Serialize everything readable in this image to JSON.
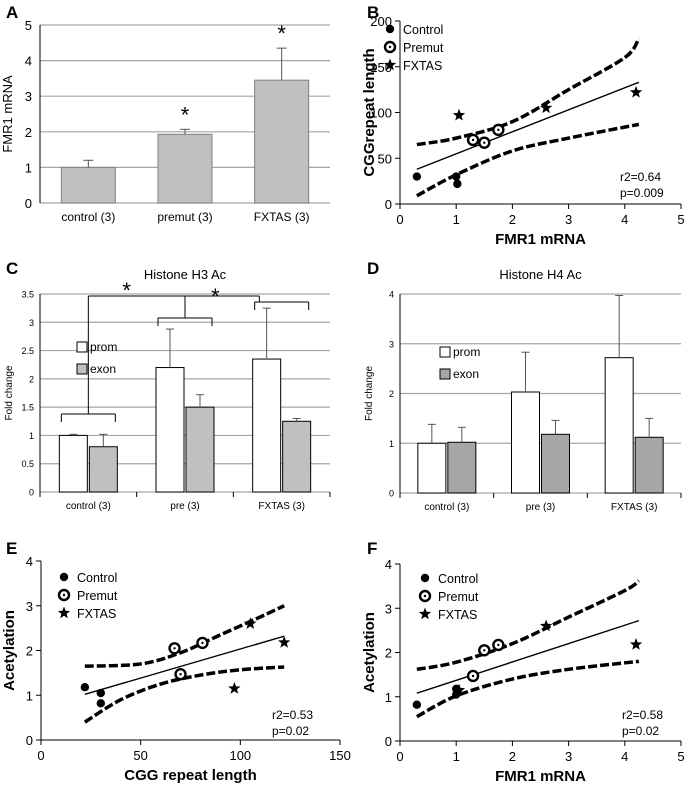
{
  "chart_data": [
    {
      "panel": "A",
      "type": "bar",
      "title": "",
      "ylabel": "FMR1 mRNA",
      "xlabel": "",
      "ylim": [
        0,
        5
      ],
      "yticks": [
        0,
        1,
        2,
        3,
        4,
        5
      ],
      "categories": [
        "control (3)",
        "premut (3)",
        "FXTAS (3)"
      ],
      "values": [
        1.0,
        1.93,
        3.45
      ],
      "errors": [
        0.2,
        0.14,
        0.9
      ],
      "significance": [
        "",
        "*",
        "*"
      ],
      "colors": {
        "bar": "#c0c0c0",
        "grid": "#a6a6a6"
      }
    },
    {
      "panel": "B",
      "type": "scatter",
      "title": "",
      "xlabel": "FMR1 mRNA",
      "ylabel": "CGGrepeat length",
      "xlim": [
        0,
        5
      ],
      "ylim": [
        0,
        200
      ],
      "xticks": [
        0,
        1,
        2,
        3,
        4,
        5
      ],
      "yticks": [
        0,
        50,
        100,
        150,
        200
      ],
      "legend": [
        "Control",
        "Premut",
        "FXTAS"
      ],
      "series": [
        {
          "name": "Control",
          "marker": "dot",
          "points": [
            [
              0.3,
              30
            ],
            [
              1.0,
              30
            ],
            [
              1.02,
              22
            ]
          ]
        },
        {
          "name": "Premut",
          "marker": "ring",
          "points": [
            [
              1.3,
              70
            ],
            [
              1.5,
              67
            ],
            [
              1.75,
              81
            ]
          ]
        },
        {
          "name": "FXTAS",
          "marker": "star",
          "points": [
            [
              1.05,
              97
            ],
            [
              2.6,
              105
            ],
            [
              4.2,
              122
            ]
          ]
        }
      ],
      "fit": [
        [
          0.3,
          38
        ],
        [
          4.25,
          133
        ]
      ],
      "ci_upper": [
        [
          0.3,
          65
        ],
        [
          1.0,
          72
        ],
        [
          2.0,
          90
        ],
        [
          3.0,
          125
        ],
        [
          4.0,
          160
        ],
        [
          4.25,
          181
        ]
      ],
      "ci_lower": [
        [
          0.3,
          9
        ],
        [
          1.0,
          32
        ],
        [
          2.0,
          58
        ],
        [
          3.0,
          72
        ],
        [
          4.25,
          87
        ]
      ],
      "annotation": [
        "r2=0.64",
        "p=0.009"
      ]
    },
    {
      "panel": "C",
      "type": "bar",
      "title": "Histone H3 Ac",
      "ylabel": "Fold change",
      "xlabel": "",
      "ylim": [
        0,
        3.5
      ],
      "yticks": [
        0,
        0.5,
        1,
        1.5,
        2,
        2.5,
        3,
        3.5
      ],
      "categories": [
        "control (3)",
        "pre (3)",
        "FXTAS (3)"
      ],
      "series": [
        {
          "name": "prom",
          "values": [
            1.0,
            2.2,
            2.35
          ],
          "errors": [
            0.02,
            0.68,
            0.9
          ],
          "color": "#ffffff"
        },
        {
          "name": "exon",
          "values": [
            0.8,
            1.5,
            1.25
          ],
          "errors": [
            0.22,
            0.22,
            0.05
          ],
          "color": "#c0c0c0"
        }
      ],
      "significance": [
        "*",
        "*"
      ],
      "colors": {
        "grid": "#a6a6a6"
      }
    },
    {
      "panel": "D",
      "type": "bar",
      "title": "Histone H4 Ac",
      "ylabel": "Fold change",
      "xlabel": "",
      "ylim": [
        0,
        4
      ],
      "yticks": [
        0,
        1,
        2,
        3,
        4
      ],
      "categories": [
        "control (3)",
        "pre (3)",
        "FXTAS (3)"
      ],
      "series": [
        {
          "name": "prom",
          "values": [
            1.0,
            2.03,
            2.72
          ],
          "errors": [
            0.38,
            0.8,
            1.25
          ],
          "color": "#ffffff"
        },
        {
          "name": "exon",
          "values": [
            1.02,
            1.18,
            1.12
          ],
          "errors": [
            0.3,
            0.28,
            0.38
          ],
          "color": "#a6a6a6"
        }
      ],
      "colors": {
        "grid": "#a6a6a6"
      }
    },
    {
      "panel": "E",
      "type": "scatter",
      "title": "",
      "xlabel": "CGG repeat length",
      "ylabel": "Acetylation",
      "xlim": [
        0,
        150
      ],
      "ylim": [
        0,
        4
      ],
      "xticks": [
        0,
        50,
        100,
        150
      ],
      "yticks": [
        0,
        1,
        2,
        3,
        4
      ],
      "legend": [
        "Control",
        "Premut",
        "FXTAS"
      ],
      "series": [
        {
          "name": "Control",
          "marker": "dot",
          "points": [
            [
              22,
              1.18
            ],
            [
              30,
              1.05
            ],
            [
              30,
              0.82
            ]
          ]
        },
        {
          "name": "Premut",
          "marker": "ring",
          "points": [
            [
              67,
              2.05
            ],
            [
              70,
              1.47
            ],
            [
              81,
              2.17
            ]
          ]
        },
        {
          "name": "FXTAS",
          "marker": "star",
          "points": [
            [
              97,
              1.15
            ],
            [
              105,
              2.6
            ],
            [
              122,
              2.18
            ]
          ]
        }
      ],
      "fit": [
        [
          22,
          1.02
        ],
        [
          122,
          2.32
        ]
      ],
      "ci_upper": [
        [
          22,
          1.65
        ],
        [
          50,
          1.7
        ],
        [
          70,
          1.95
        ],
        [
          90,
          2.35
        ],
        [
          110,
          2.75
        ],
        [
          122,
          3.0
        ]
      ],
      "ci_lower": [
        [
          22,
          0.4
        ],
        [
          40,
          0.9
        ],
        [
          60,
          1.25
        ],
        [
          80,
          1.45
        ],
        [
          100,
          1.57
        ],
        [
          122,
          1.63
        ]
      ],
      "annotation": [
        "r2=0.53",
        "p=0.02"
      ]
    },
    {
      "panel": "F",
      "type": "scatter",
      "title": "",
      "xlabel": "FMR1 mRNA",
      "ylabel": "Acetylation",
      "xlim": [
        0,
        5
      ],
      "ylim": [
        0,
        4
      ],
      "xticks": [
        0,
        1,
        2,
        3,
        4,
        5
      ],
      "yticks": [
        0,
        1,
        2,
        3,
        4
      ],
      "legend": [
        "Control",
        "Premut",
        "FXTAS"
      ],
      "series": [
        {
          "name": "Control",
          "marker": "dot",
          "points": [
            [
              0.3,
              0.82
            ],
            [
              1.0,
              1.18
            ],
            [
              1.0,
              1.05
            ]
          ]
        },
        {
          "name": "Premut",
          "marker": "ring",
          "points": [
            [
              1.3,
              1.47
            ],
            [
              1.5,
              2.05
            ],
            [
              1.75,
              2.17
            ]
          ]
        },
        {
          "name": "FXTAS",
          "marker": "star",
          "points": [
            [
              1.05,
              1.15
            ],
            [
              2.6,
              2.6
            ],
            [
              4.2,
              2.18
            ]
          ]
        }
      ],
      "fit": [
        [
          0.3,
          1.08
        ],
        [
          4.25,
          2.72
        ]
      ],
      "ci_upper": [
        [
          0.3,
          1.62
        ],
        [
          1.0,
          1.78
        ],
        [
          2.0,
          2.2
        ],
        [
          3.0,
          2.8
        ],
        [
          4.0,
          3.4
        ],
        [
          4.25,
          3.62
        ]
      ],
      "ci_lower": [
        [
          0.3,
          0.55
        ],
        [
          1.0,
          1.02
        ],
        [
          2.0,
          1.4
        ],
        [
          3.0,
          1.62
        ],
        [
          4.25,
          1.8
        ]
      ],
      "annotation": [
        "r2=0.58",
        "p=0.02"
      ]
    }
  ]
}
